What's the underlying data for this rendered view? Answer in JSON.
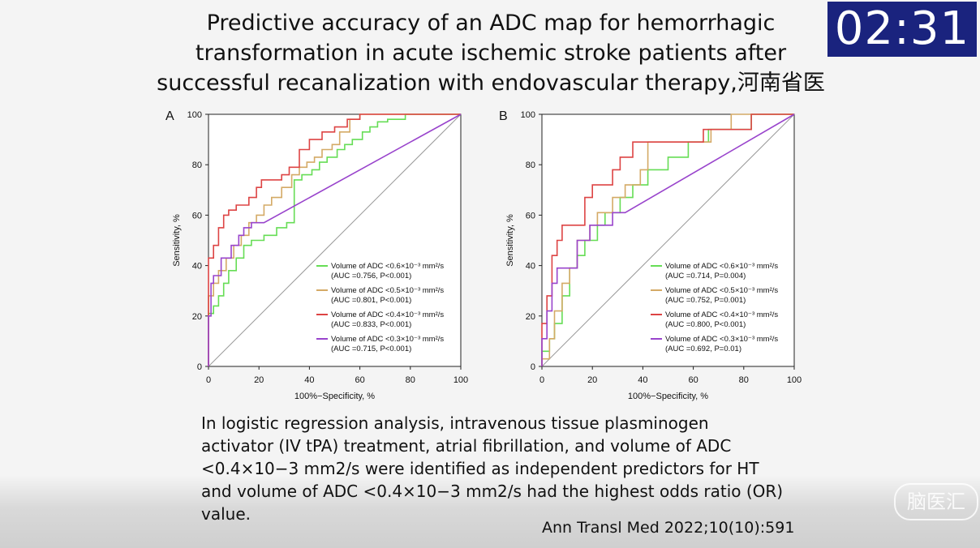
{
  "title": "Predictive accuracy of an ADC map for hemorrhagic transformation in acute ischemic stroke patients after successful recanalization with endovascular therapy,河南省医",
  "timer": "02:31",
  "body_text": "In logistic regression analysis, intravenous tissue plasminogen activator (IV tPA) treatment, atrial fibrillation, and volume of ADC <0.4×10−3 mm2/s were identified as independent predictors for HT and volume of ADC <0.4×10−3 mm2/s had the highest odds ratio (OR) value.",
  "citation": "Ann Transl Med 2022;10(10):591",
  "watermark": "脑医汇",
  "colors": {
    "green": "#66dd55",
    "orange": "#d4aa66",
    "red": "#dd4444",
    "purple": "#9944cc",
    "timer_bg": "#1a237e"
  },
  "chart_data": [
    {
      "type": "line",
      "panel_label": "A",
      "xlabel": "100%−Specificity, %",
      "ylabel": "Sensitivity, %",
      "xlim": [
        0,
        100
      ],
      "ylim": [
        0,
        100
      ],
      "xticks": [
        0,
        20,
        40,
        60,
        80,
        100
      ],
      "yticks": [
        0,
        20,
        40,
        60,
        80,
        100
      ],
      "legend_position": "bottom-right",
      "series": [
        {
          "name": "Volume of ADC <0.6×10⁻³ mm²/s",
          "stat": "(AUC =0.756, P<0.001)",
          "color": "green",
          "x": [
            0,
            0,
            2,
            2,
            4,
            4,
            6,
            6,
            8,
            8,
            11,
            11,
            14,
            14,
            17,
            17,
            22,
            22,
            27,
            27,
            31,
            31,
            34,
            34,
            37,
            37,
            41,
            41,
            44,
            44,
            47,
            47,
            51,
            51,
            54,
            54,
            57,
            57,
            61,
            61,
            64,
            64,
            67,
            67,
            71,
            71,
            78,
            78,
            100
          ],
          "y": [
            0,
            21,
            21,
            24,
            24,
            28,
            28,
            33,
            33,
            38,
            38,
            43,
            43,
            48,
            48,
            50,
            50,
            52,
            52,
            55,
            55,
            57,
            57,
            74,
            74,
            76,
            76,
            78,
            78,
            81,
            81,
            83,
            83,
            86,
            86,
            88,
            88,
            90,
            90,
            93,
            93,
            95,
            95,
            97,
            97,
            98,
            98,
            100,
            100
          ]
        },
        {
          "name": "Volume of ADC <0.5×10⁻³ mm²/s",
          "stat": "(AUC =0.801, P<0.001)",
          "color": "orange",
          "x": [
            0,
            0,
            2,
            2,
            4,
            4,
            7,
            7,
            10,
            10,
            13,
            13,
            16,
            16,
            19,
            19,
            22,
            22,
            25,
            25,
            29,
            29,
            33,
            33,
            36,
            36,
            39,
            39,
            42,
            42,
            45,
            45,
            49,
            49,
            52,
            52,
            56,
            56,
            60,
            60,
            100
          ],
          "y": [
            0,
            28,
            28,
            33,
            33,
            38,
            38,
            43,
            43,
            48,
            48,
            52,
            52,
            57,
            57,
            60,
            60,
            64,
            64,
            67,
            67,
            71,
            71,
            76,
            76,
            79,
            79,
            81,
            81,
            83,
            83,
            86,
            86,
            88,
            88,
            93,
            93,
            98,
            98,
            100,
            100
          ]
        },
        {
          "name": "Volume of ADC <0.4×10⁻³ mm²/s",
          "stat": "(AUC =0.833, P<0.001)",
          "color": "red",
          "x": [
            0,
            0,
            2,
            2,
            4,
            4,
            6,
            6,
            8,
            8,
            11,
            11,
            16,
            16,
            19,
            19,
            21,
            21,
            23,
            23,
            29,
            29,
            32,
            32,
            36,
            36,
            40,
            40,
            45,
            45,
            50,
            50,
            55,
            55,
            60,
            60,
            100
          ],
          "y": [
            0,
            43,
            43,
            48,
            48,
            55,
            55,
            60,
            60,
            62,
            62,
            64,
            64,
            67,
            67,
            71,
            71,
            74,
            74,
            74,
            74,
            76,
            76,
            79,
            79,
            86,
            86,
            90,
            90,
            93,
            93,
            95,
            95,
            98,
            98,
            100,
            100
          ]
        },
        {
          "name": "Volume of ADC <0.3×10⁻³ mm²/s",
          "stat": "(AUC =0.715, P<0.001)",
          "color": "purple",
          "x": [
            0,
            0,
            1,
            1,
            2,
            2,
            5,
            5,
            9,
            9,
            12,
            12,
            14,
            14,
            17,
            17,
            20,
            20,
            22,
            100
          ],
          "y": [
            0,
            20,
            20,
            33,
            33,
            36,
            36,
            43,
            43,
            48,
            48,
            52,
            52,
            55,
            55,
            57,
            57,
            57,
            57,
            100
          ]
        }
      ]
    },
    {
      "type": "line",
      "panel_label": "B",
      "xlabel": "100%−Specificity, %",
      "ylabel": "Sensitivity, %",
      "xlim": [
        0,
        100
      ],
      "ylim": [
        0,
        100
      ],
      "xticks": [
        0,
        20,
        40,
        60,
        80,
        100
      ],
      "yticks": [
        0,
        20,
        40,
        60,
        80,
        100
      ],
      "legend_position": "bottom-right",
      "series": [
        {
          "name": "Volume of ADC <0.6×10⁻³ mm²/s",
          "stat": "(AUC =0.714, P=0.004)",
          "color": "green",
          "x": [
            0,
            0,
            3,
            3,
            5,
            5,
            8,
            8,
            11,
            11,
            14,
            14,
            17,
            17,
            22,
            22,
            25,
            25,
            31,
            31,
            36,
            36,
            42,
            42,
            50,
            50,
            58,
            58,
            66,
            66,
            83,
            83,
            100
          ],
          "y": [
            0,
            6,
            6,
            11,
            11,
            17,
            17,
            28,
            28,
            39,
            39,
            44,
            44,
            50,
            50,
            56,
            56,
            61,
            61,
            67,
            67,
            72,
            72,
            78,
            78,
            83,
            83,
            89,
            89,
            94,
            94,
            100,
            100
          ]
        },
        {
          "name": "Volume of ADC <0.5×10⁻³ mm²/s",
          "stat": "(AUC =0.752, P=0.001)",
          "color": "orange",
          "x": [
            0,
            0,
            3,
            3,
            5,
            5,
            8,
            8,
            11,
            11,
            14,
            14,
            19,
            19,
            22,
            22,
            28,
            28,
            33,
            33,
            39,
            39,
            42,
            42,
            50,
            50,
            58,
            58,
            67,
            67,
            75,
            75,
            100
          ],
          "y": [
            0,
            3,
            3,
            11,
            11,
            22,
            22,
            33,
            33,
            39,
            39,
            50,
            50,
            56,
            56,
            61,
            61,
            67,
            67,
            72,
            72,
            78,
            78,
            89,
            89,
            89,
            89,
            89,
            89,
            94,
            94,
            100,
            100
          ]
        },
        {
          "name": "Volume of ADC <0.4×10⁻³ mm²/s",
          "stat": "(AUC =0.800, P<0.001)",
          "color": "red",
          "x": [
            0,
            0,
            2,
            2,
            4,
            4,
            6,
            6,
            8,
            8,
            11,
            11,
            17,
            17,
            20,
            20,
            28,
            28,
            31,
            31,
            36,
            36,
            47,
            47,
            64,
            64,
            83,
            83,
            100
          ],
          "y": [
            0,
            17,
            17,
            28,
            28,
            44,
            44,
            50,
            50,
            56,
            56,
            56,
            56,
            67,
            67,
            72,
            72,
            78,
            78,
            83,
            83,
            89,
            89,
            89,
            89,
            94,
            94,
            100,
            100
          ]
        },
        {
          "name": "Volume of ADC <0.3×10⁻³ mm²/s",
          "stat": "(AUC =0.692, P=0.01)",
          "color": "purple",
          "x": [
            0,
            0,
            2,
            2,
            4,
            4,
            6,
            6,
            14,
            14,
            19,
            19,
            28,
            28,
            33,
            100
          ],
          "y": [
            0,
            11,
            11,
            22,
            22,
            33,
            33,
            39,
            39,
            50,
            50,
            56,
            56,
            61,
            61,
            100
          ]
        }
      ]
    }
  ]
}
